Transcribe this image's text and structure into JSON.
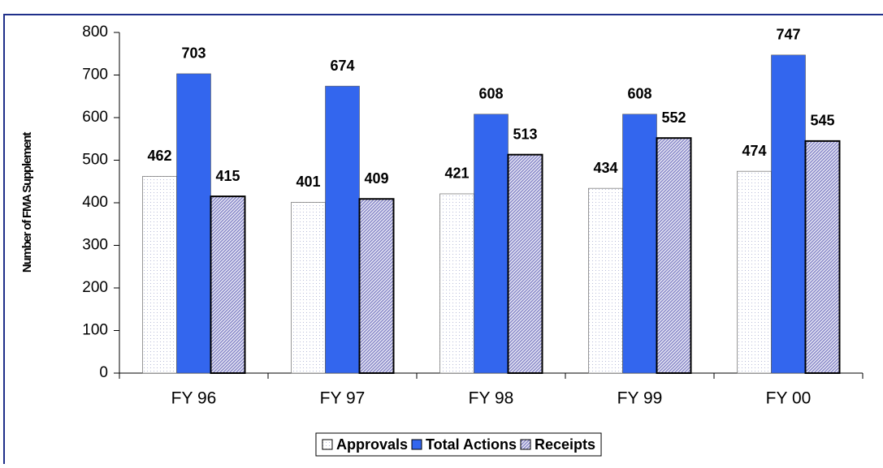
{
  "chart_data": {
    "type": "bar",
    "y_label": "Number of FMA Supplement",
    "categories": [
      "FY 96",
      "FY 97",
      "FY 98",
      "FY 99",
      "FY 00"
    ],
    "series": [
      {
        "name": "Approvals",
        "color": "#eef0f8",
        "pattern": "dots",
        "values": [
          462,
          401,
          421,
          434,
          474
        ]
      },
      {
        "name": "Total Actions",
        "color": "#3366ee",
        "pattern": "solid",
        "values": [
          703,
          674,
          608,
          608,
          747
        ]
      },
      {
        "name": "Receipts",
        "color": "#8f8fcc",
        "pattern": "hatch",
        "values": [
          415,
          409,
          513,
          552,
          545
        ]
      }
    ],
    "ylim": [
      0,
      800
    ],
    "yticks": [
      0,
      100,
      200,
      300,
      400,
      500,
      600,
      700,
      800
    ],
    "legend": "bottom"
  }
}
